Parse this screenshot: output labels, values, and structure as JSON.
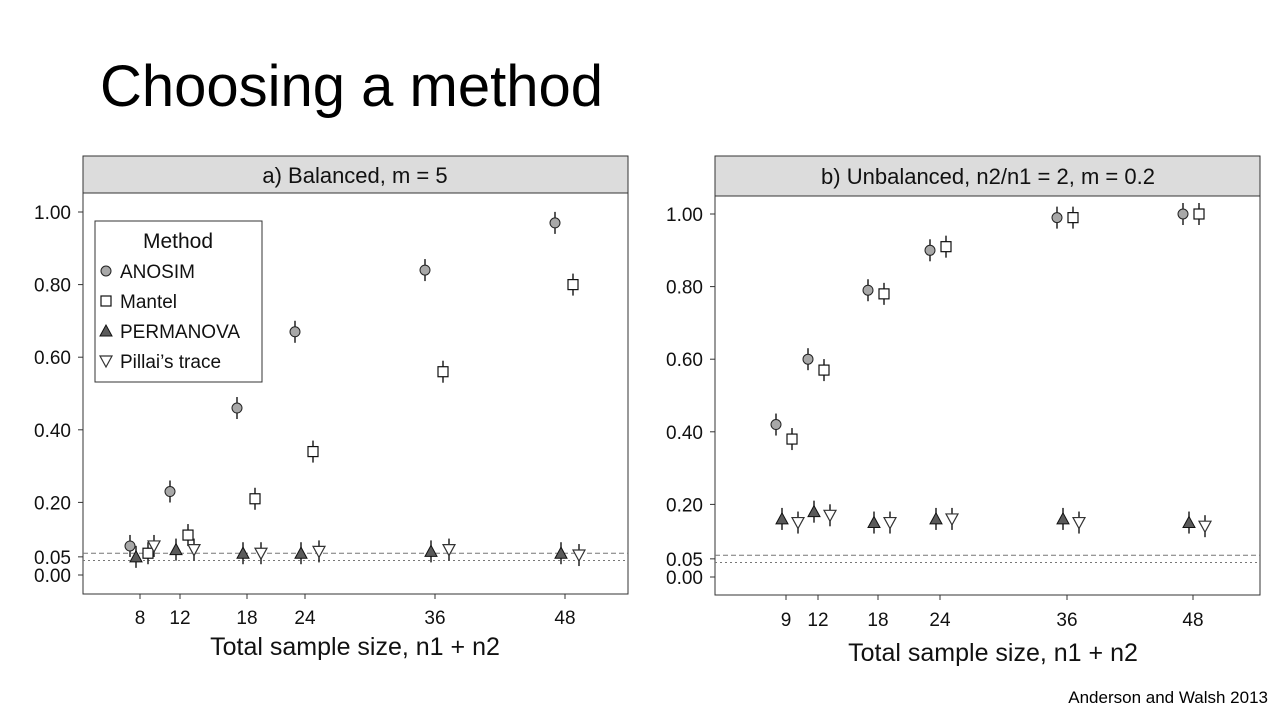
{
  "slide": {
    "title": "Choosing a method",
    "citation": "Anderson and Walsh 2013"
  },
  "chart_data": [
    {
      "type": "scatter",
      "panel": "a",
      "title": "a) Balanced, m = 5",
      "xlabel": "Total sample size, n1 + n2",
      "ylabel": "",
      "xticks": [
        8,
        12,
        18,
        24,
        36,
        48
      ],
      "yticks": [
        0.0,
        0.05,
        0.2,
        0.4,
        0.6,
        0.8,
        1.0
      ],
      "ytick_labels": [
        "0.00",
        "0.05",
        "0.20",
        "0.40",
        "0.60",
        "0.80",
        "1.00"
      ],
      "ylim": [
        -0.03,
        1.03
      ],
      "reference_lines": [
        0.04,
        0.06
      ],
      "grid": false,
      "legend": {
        "title": "Method",
        "position": "top-left",
        "entries": [
          "ANOSIM",
          "Mantel",
          "PERMANOVA",
          "Pillai’s trace"
        ]
      },
      "series": [
        {
          "name": "ANOSIM",
          "marker": "circle",
          "x": [
            8,
            12,
            18,
            24,
            36,
            48
          ],
          "y": [
            0.08,
            0.23,
            0.46,
            0.67,
            0.84,
            0.97
          ]
        },
        {
          "name": "Mantel",
          "marker": "square",
          "x": [
            8,
            12,
            18,
            24,
            36,
            48
          ],
          "y": [
            0.06,
            0.11,
            0.21,
            0.34,
            0.56,
            0.8
          ]
        },
        {
          "name": "PERMANOVA",
          "marker": "triangle-up",
          "x": [
            8,
            12,
            18,
            24,
            36,
            48
          ],
          "y": [
            0.05,
            0.07,
            0.06,
            0.06,
            0.065,
            0.06
          ]
        },
        {
          "name": "Pillai’s trace",
          "marker": "triangle-down",
          "x": [
            8,
            12,
            18,
            24,
            36,
            48
          ],
          "y": [
            0.08,
            0.07,
            0.06,
            0.065,
            0.07,
            0.055
          ]
        }
      ]
    },
    {
      "type": "scatter",
      "panel": "b",
      "title": "b) Unbalanced, n2/n1 = 2, m = 0.2",
      "xlabel": "Total sample size, n1 + n2",
      "ylabel": "",
      "xticks": [
        9,
        12,
        18,
        24,
        36,
        48
      ],
      "yticks": [
        0.0,
        0.05,
        0.2,
        0.4,
        0.6,
        0.8,
        1.0
      ],
      "ytick_labels": [
        "0.00",
        "0.05",
        "0.20",
        "0.40",
        "0.60",
        "0.80",
        "1.00"
      ],
      "ylim": [
        -0.03,
        1.03
      ],
      "reference_lines": [
        0.04,
        0.06
      ],
      "grid": false,
      "series": [
        {
          "name": "ANOSIM",
          "marker": "circle",
          "x": [
            9,
            12,
            18,
            24,
            36,
            48
          ],
          "y": [
            0.42,
            0.6,
            0.79,
            0.9,
            0.99,
            1.0
          ]
        },
        {
          "name": "Mantel",
          "marker": "square",
          "x": [
            9,
            12,
            18,
            24,
            36,
            48
          ],
          "y": [
            0.38,
            0.57,
            0.78,
            0.91,
            0.99,
            1.0
          ]
        },
        {
          "name": "PERMANOVA",
          "marker": "triangle-up",
          "x": [
            9,
            12,
            18,
            24,
            36,
            48
          ],
          "y": [
            0.16,
            0.18,
            0.15,
            0.16,
            0.16,
            0.15
          ]
        },
        {
          "name": "Pillai’s trace",
          "marker": "triangle-down",
          "x": [
            9,
            12,
            18,
            24,
            36,
            48
          ],
          "y": [
            0.15,
            0.17,
            0.15,
            0.16,
            0.15,
            0.14
          ]
        }
      ]
    }
  ]
}
